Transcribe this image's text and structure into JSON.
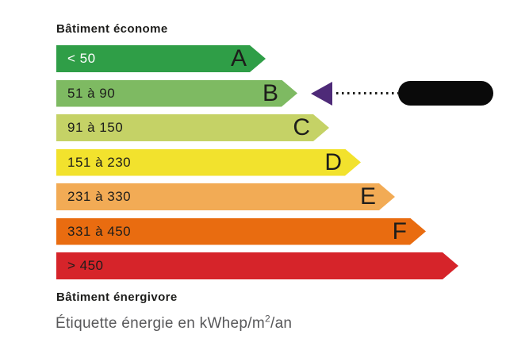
{
  "chart_data": {
    "type": "bar",
    "orientation": "horizontal",
    "title": "Étiquette énergie en kWhep/m²/an",
    "top_label": "Bâtiment économe",
    "bottom_label": "Bâtiment énergivore",
    "legend_position": "none",
    "classes": [
      {
        "letter": "A",
        "range": "< 50",
        "color": "#2f9e47",
        "text_color": "#ffffff",
        "bar_length": "264px"
      },
      {
        "letter": "B",
        "range": "51 à 90",
        "color": "#7eba62",
        "text_color": "#1d1d1b",
        "bar_length": "304px"
      },
      {
        "letter": "C",
        "range": "91 à 150",
        "color": "#c5d266",
        "text_color": "#1d1d1b",
        "bar_length": "344px"
      },
      {
        "letter": "D",
        "range": "151 à 230",
        "color": "#f2e22d",
        "text_color": "#1d1d1b",
        "bar_length": "384px"
      },
      {
        "letter": "E",
        "range": "231 à 330",
        "color": "#f2ab55",
        "text_color": "#1d1d1b",
        "bar_length": "427px"
      },
      {
        "letter": "F",
        "range": "331 à 450",
        "color": "#e96c10",
        "text_color": "#1d1d1b",
        "bar_length": "466px"
      },
      {
        "letter": "",
        "range": "> 450",
        "color": "#d6242a",
        "text_color": "#1d1d1b",
        "bar_length": "507px"
      }
    ],
    "indicator": {
      "points_to_range": "51 à 90",
      "points_to_letter": "B",
      "value_redacted": true,
      "arrow_color": "#4e2a78",
      "line_style": "dotted",
      "redaction_color": "#0a0a0a"
    }
  },
  "caption": {
    "prefix": "Étiquette énergie en kWhep/m",
    "sup": "2",
    "suffix": "/an"
  }
}
